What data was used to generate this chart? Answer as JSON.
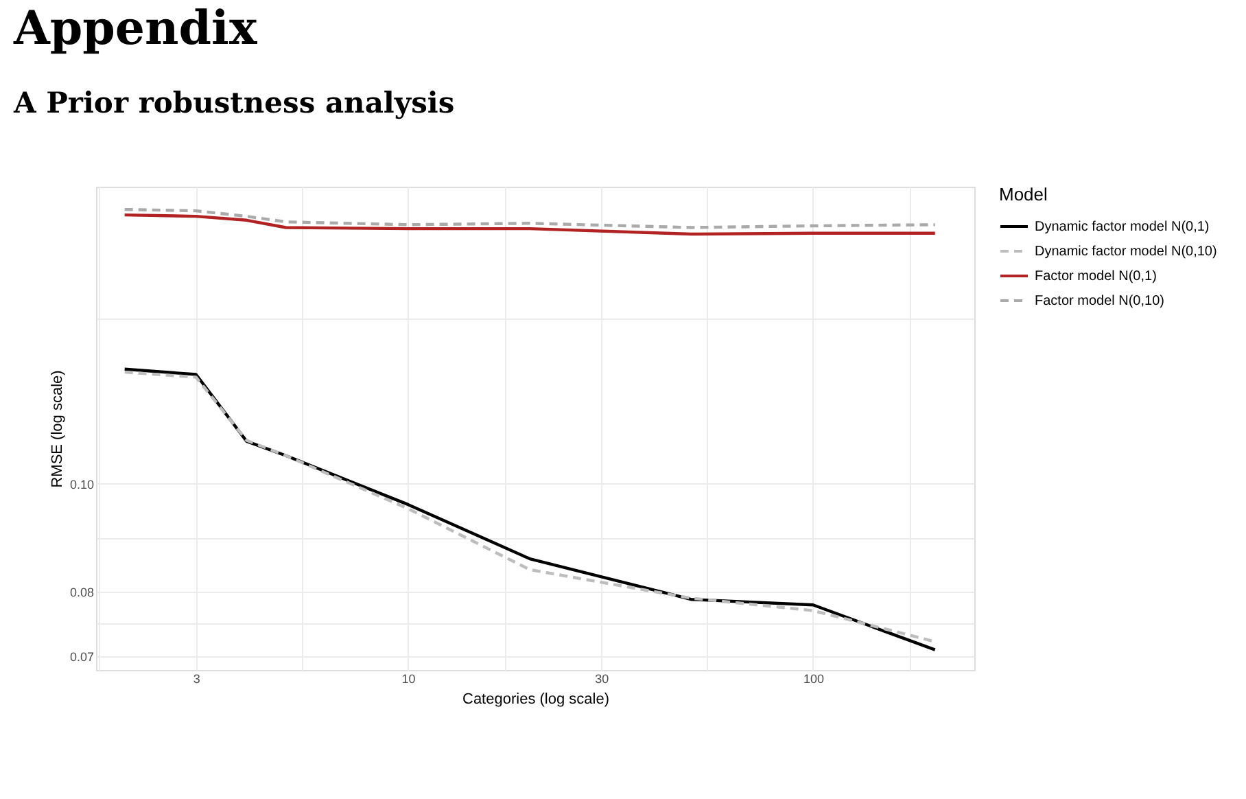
{
  "chart_data": {
    "type": "line",
    "title": "Appendix",
    "subtitle": "A   Prior robustness analysis",
    "xlabel": "Categories (log scale)",
    "ylabel": "RMSE (log scale)",
    "legend_title": "Model",
    "x": [
      2,
      3,
      4,
      5,
      10,
      20,
      50,
      100,
      200
    ],
    "series": [
      {
        "name": "Dynamic factor model N(0,1)",
        "color": "#000000",
        "line_style": "solid",
        "values": [
          0.1268,
          0.1254,
          0.1092,
          0.106,
          0.0958,
          0.0856,
          0.0787,
          0.0778,
          0.0709
        ]
      },
      {
        "name": "Dynamic factor model N(0,10)",
        "color": "#bdbdbd",
        "line_style": "dashed",
        "values": [
          0.126,
          0.1247,
          0.1094,
          0.106,
          0.095,
          0.0837,
          0.0789,
          0.0769,
          0.0721
        ]
      },
      {
        "name": "Factor model N(0,1)",
        "color": "#b22222",
        "line_style": "solid",
        "values": [
          0.1745,
          0.174,
          0.1726,
          0.17,
          0.1696,
          0.1696,
          0.1677,
          0.168,
          0.168
        ]
      },
      {
        "name": "Factor model N(0,10)",
        "color": "#aaaaaa",
        "line_style": "dashed",
        "values": [
          0.1765,
          0.176,
          0.174,
          0.172,
          0.171,
          0.1715,
          0.17,
          0.1706,
          0.171
        ]
      }
    ],
    "log": "xy",
    "xlim": [
      1.7,
      250
    ],
    "ylim": [
      0.068,
      0.185
    ],
    "xticks": [
      {
        "value": 1.73,
        "label": null
      },
      3,
      {
        "value": 5.48,
        "label": null
      },
      10,
      {
        "value": 17.3,
        "label": null
      },
      30,
      {
        "value": 54.8,
        "label": null
      },
      100,
      {
        "value": 173,
        "label": null
      }
    ],
    "yticks": [
      0.07,
      {
        "value": 0.075,
        "label": null
      },
      0.08,
      {
        "value": 0.0894,
        "label": null
      },
      {
        "value": 0.1,
        "label": "0.10"
      },
      {
        "value": 0.141,
        "label": null
      }
    ],
    "grid": true,
    "legend": "right",
    "marker": "none"
  }
}
